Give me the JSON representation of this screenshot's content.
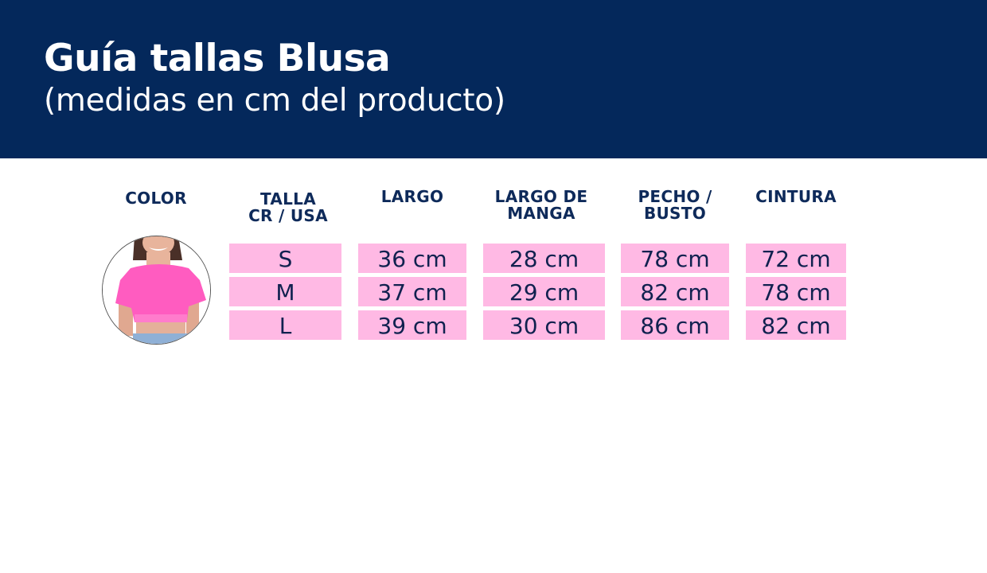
{
  "header": {
    "title": "Guía tallas Blusa",
    "subtitle": "(medidas en cm del producto)"
  },
  "columns": [
    "COLOR",
    "TALLA\nCR / USA",
    "LARGO",
    "LARGO DE\nMANGA",
    "PECHO /\nBUSTO",
    "CINTURA"
  ],
  "headers": {
    "color": "COLOR",
    "talla1": "TALLA",
    "talla2": "CR / USA",
    "largo": "LARGO",
    "manga1": "LARGO DE",
    "manga2": "MANGA",
    "pecho1": "PECHO /",
    "pecho2": "BUSTO",
    "cintura": "CINTURA"
  },
  "rows": [
    {
      "talla": "S",
      "largo": "36 cm",
      "manga": "28 cm",
      "pecho": "78 cm",
      "cintura": "72 cm"
    },
    {
      "talla": "M",
      "largo": "37 cm",
      "manga": "29 cm",
      "pecho": "82 cm",
      "cintura": "78 cm"
    },
    {
      "talla": "L",
      "largo": "39 cm",
      "manga": "30 cm",
      "pecho": "86 cm",
      "cintura": "82 cm"
    }
  ],
  "colors": {
    "header_bg": "#04285b",
    "cell_bg": "#ffb9e4",
    "text": "#10214f",
    "product": "#ff5fc0"
  }
}
